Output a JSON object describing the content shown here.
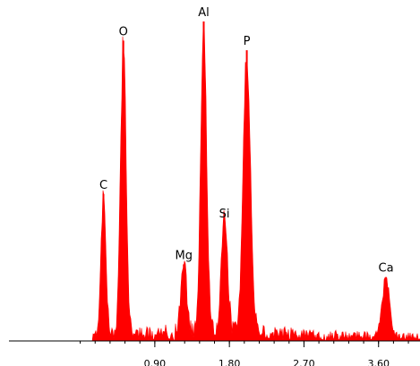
{
  "chart_data": {
    "type": "area",
    "title": "",
    "xlabel": "",
    "ylabel": "",
    "xlim": [
      -0.86,
      4.1
    ],
    "ylim": [
      0,
      100
    ],
    "grid": false,
    "fill_color": "#ff0000",
    "axis_color": "#000000",
    "x_ticks": [
      0.9,
      1.8,
      2.7,
      3.6
    ],
    "x_tick_labels": [
      "0.90",
      "1.80",
      "2.70",
      "3.60"
    ],
    "baseline_level": 4,
    "peaks": [
      {
        "element": "C",
        "x": 0.28,
        "intensity": 46,
        "width": 0.03
      },
      {
        "element": "O",
        "x": 0.52,
        "intensity": 94,
        "width": 0.034
      },
      {
        "element": "Mg",
        "x": 1.25,
        "intensity": 24,
        "width": 0.035
      },
      {
        "element": "Al",
        "x": 1.49,
        "intensity": 100,
        "width": 0.036
      },
      {
        "element": "Si",
        "x": 1.74,
        "intensity": 37,
        "width": 0.038
      },
      {
        "element": "P",
        "x": 2.01,
        "intensity": 91,
        "width": 0.045
      },
      {
        "element": "Ca",
        "x": 3.69,
        "intensity": 20,
        "width": 0.045
      }
    ]
  }
}
